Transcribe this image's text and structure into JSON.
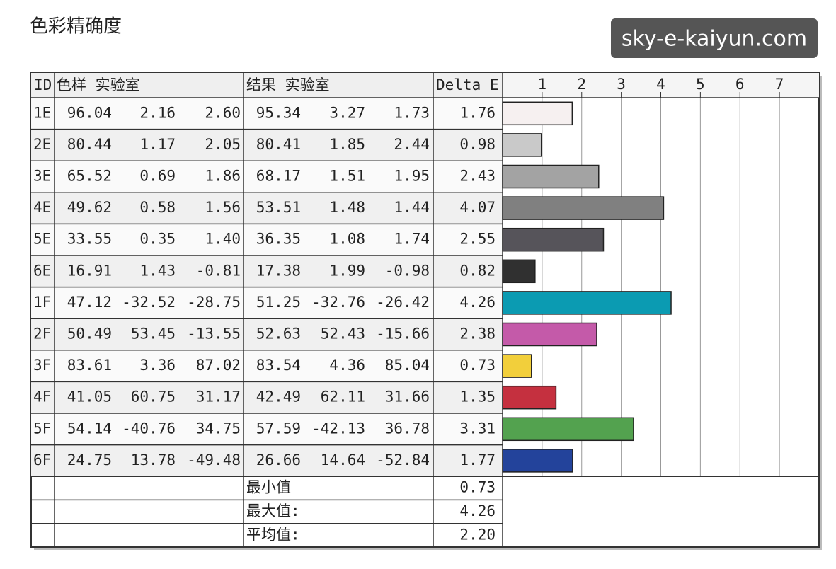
{
  "header": {
    "title": "色彩精确度",
    "watermark": "sky-e-kaiyun.com"
  },
  "table": {
    "columns": [
      "ID",
      "色样 实验室",
      "结果 实验室",
      "Delta E"
    ],
    "rows": [
      [
        "1E",
        "96.04",
        "2.16",
        "2.60",
        "95.34",
        "3.27",
        "1.73"
      ],
      [
        "2E",
        "80.44",
        "1.17",
        "2.05",
        "80.41",
        "1.85",
        "2.44"
      ],
      [
        "3E",
        "65.52",
        "0.69",
        "1.86",
        "68.17",
        "1.51",
        "1.95"
      ],
      [
        "4E",
        "49.62",
        "0.58",
        "1.56",
        "53.51",
        "1.48",
        "1.44"
      ],
      [
        "5E",
        "33.55",
        "0.35",
        "1.40",
        "36.35",
        "1.08",
        "1.74"
      ],
      [
        "6E",
        "16.91",
        "1.43",
        "-0.81",
        "17.38",
        "1.99",
        "-0.98"
      ],
      [
        "1F",
        "47.12",
        "-32.52",
        "-28.75",
        "51.25",
        "-32.76",
        "-26.42"
      ],
      [
        "2F",
        "50.49",
        "53.45",
        "-13.55",
        "52.63",
        "52.43",
        "-15.66"
      ],
      [
        "3F",
        "83.61",
        "3.36",
        "87.02",
        "83.54",
        "4.36",
        "85.04"
      ],
      [
        "4F",
        "41.05",
        "60.75",
        "31.17",
        "42.49",
        "62.11",
        "31.66"
      ],
      [
        "5F",
        "54.14",
        "-40.76",
        "34.75",
        "57.59",
        "-42.13",
        "36.78"
      ],
      [
        "6F",
        "24.75",
        "13.78",
        "-49.48",
        "26.66",
        "14.64",
        "-52.84"
      ]
    ],
    "summary": [
      [
        "最小值",
        "0.73"
      ],
      [
        "最大值:",
        "4.26"
      ],
      [
        "平均值:",
        "2.20"
      ]
    ]
  },
  "chart_data": {
    "type": "bar",
    "orientation": "horizontal",
    "values": [
      1.76,
      0.98,
      2.43,
      4.07,
      2.55,
      0.82,
      4.26,
      2.38,
      0.73,
      1.35,
      3.31,
      1.77
    ],
    "value_labels": [
      "1.76",
      "0.98",
      "2.43",
      "4.07",
      "2.55",
      "0.82",
      "4.26",
      "2.38",
      "0.73",
      "1.35",
      "3.31",
      "1.77"
    ],
    "colors": [
      "#f6f0f0",
      "#c9c9c9",
      "#a3a3a3",
      "#808080",
      "#56545a",
      "#303030",
      "#0b9bb2",
      "#c45aa9",
      "#f2cf3b",
      "#c5303f",
      "#53a24f",
      "#23439b"
    ],
    "xlim": [
      0,
      8
    ],
    "xticks": [
      1,
      2,
      3,
      4,
      5,
      6,
      7
    ],
    "grid": true
  }
}
